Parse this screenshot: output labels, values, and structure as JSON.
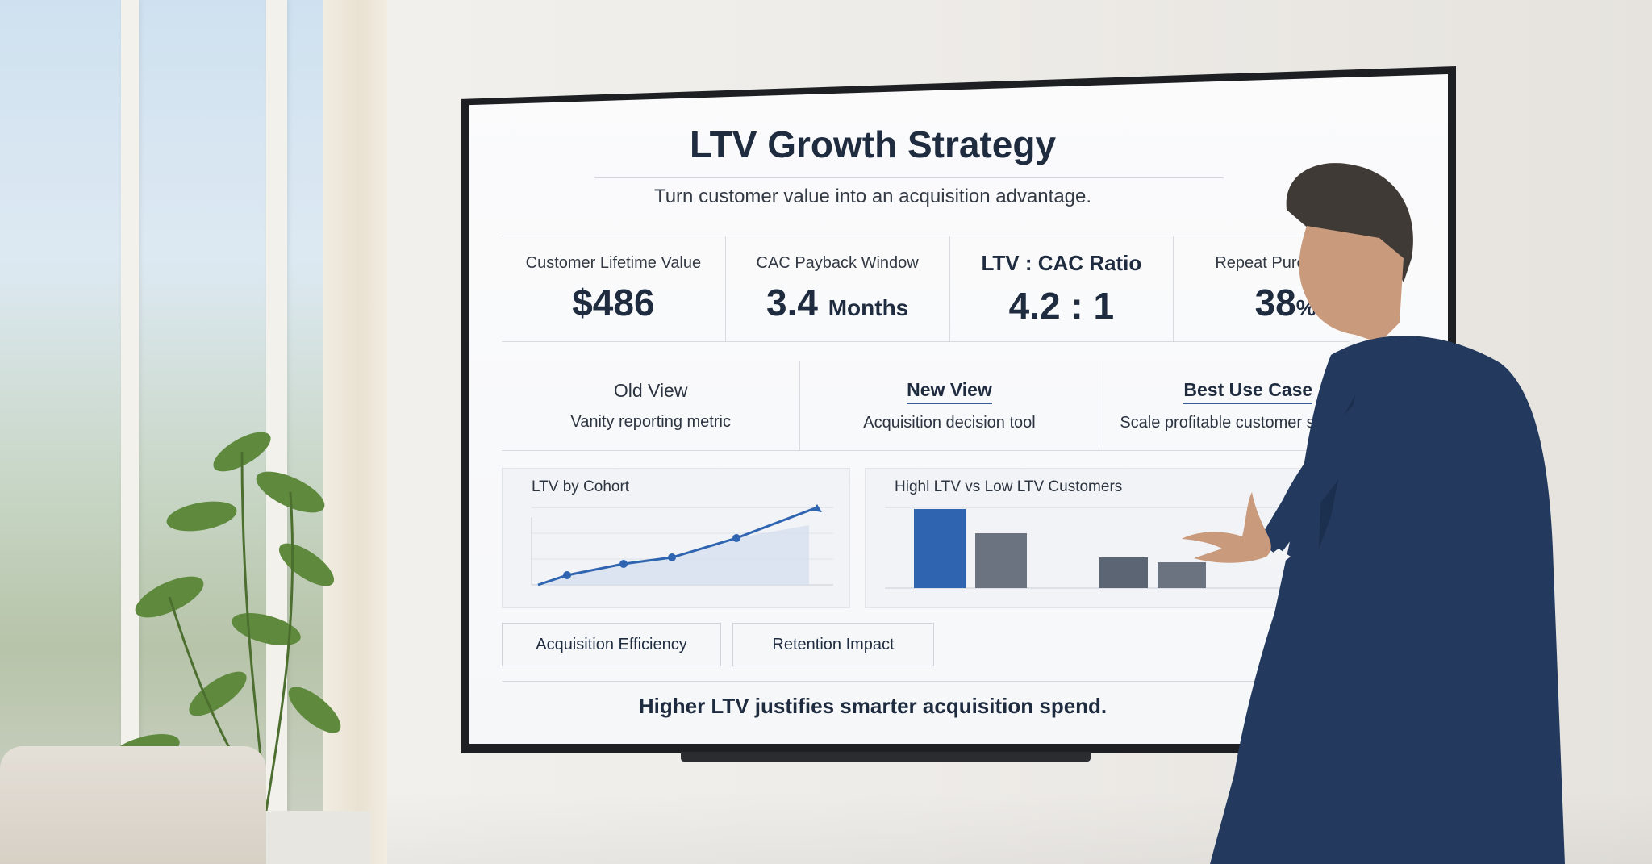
{
  "dashboard": {
    "title": "LTV Growth Strategy",
    "subtitle": "Turn customer value into an acquisition advantage.",
    "kpis": [
      {
        "label": "Customer Lifetime Value",
        "value": "$486",
        "unit": ""
      },
      {
        "label": "CAC Payback Window",
        "value": "3.4",
        "unit": "Months"
      },
      {
        "label": "LTV : CAC Ratio",
        "value": "4.2 : 1",
        "unit": ""
      },
      {
        "label": "Repeat Purchase R",
        "value": "38",
        "unit": "%"
      }
    ],
    "views": [
      {
        "head": "Old View",
        "body": "Vanity reporting metric"
      },
      {
        "head": "New View",
        "body": "Acquisition decision tool"
      },
      {
        "head": "Best Use Case",
        "body": "Scale profitable customer segments"
      }
    ],
    "line_chart_title": "LTV by Cohort",
    "bar_chart_title": "Highl LTV vs Low LTV Customers",
    "tags": [
      "Acquisition Efficiency",
      "Retention Impact"
    ],
    "footer": "Higher LTV justifies smarter acquisition spend."
  },
  "colors": {
    "accent": "#2f64b0",
    "gray_bar": "#6b7380",
    "dark_bar": "#5b6573",
    "text": "#1f2b3f"
  }
}
